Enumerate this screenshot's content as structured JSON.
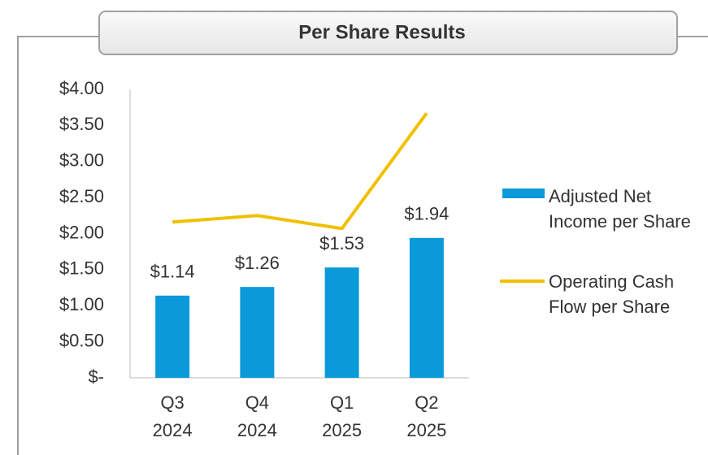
{
  "chart_data": {
    "type": "bar-line",
    "title": "Per Share Results",
    "categories": [
      [
        "Q3",
        "2024"
      ],
      [
        "Q4",
        "2024"
      ],
      [
        "Q1",
        "2025"
      ],
      [
        "Q2",
        "2025"
      ]
    ],
    "series": [
      {
        "name": "Adjusted Net Income per Share",
        "type": "bar",
        "color": "#0a9ad9",
        "values": [
          1.14,
          1.26,
          1.53,
          1.94
        ],
        "value_labels": [
          "$1.14",
          "$1.26",
          "$1.53",
          "$1.94"
        ]
      },
      {
        "name": "Operating Cash Flow per Share",
        "type": "line",
        "color": "#f0c000",
        "values": [
          2.16,
          2.25,
          2.07,
          3.67
        ]
      }
    ],
    "ylim": [
      0,
      4
    ],
    "yticks": [
      {
        "value": 0,
        "label": "$-"
      },
      {
        "value": 0.5,
        "label": "$0.50"
      },
      {
        "value": 1,
        "label": "$1.00"
      },
      {
        "value": 1.5,
        "label": "$1.50"
      },
      {
        "value": 2,
        "label": "$2.00"
      },
      {
        "value": 2.5,
        "label": "$2.50"
      },
      {
        "value": 3,
        "label": "$3.00"
      },
      {
        "value": 3.5,
        "label": "$3.50"
      },
      {
        "value": 4,
        "label": "$4.00"
      }
    ],
    "legend": "right"
  }
}
